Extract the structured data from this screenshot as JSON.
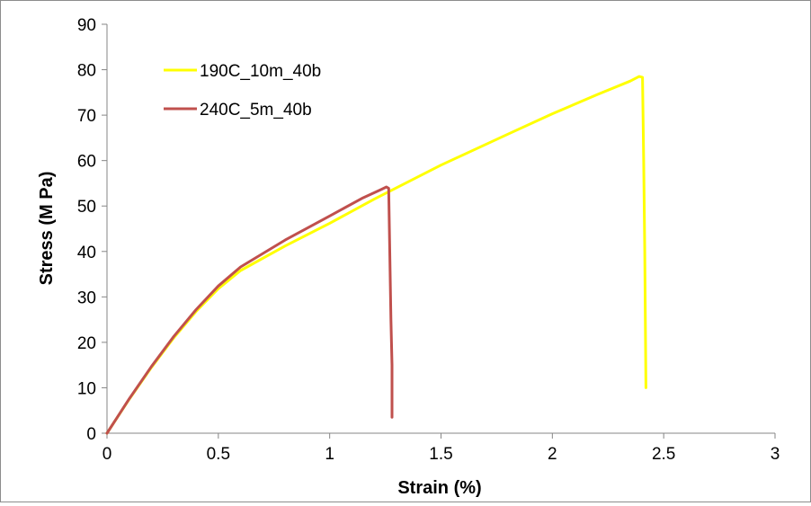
{
  "chart_data": {
    "type": "line",
    "title": "",
    "xlabel": "Strain (%)",
    "ylabel": "Stress (M Pa)",
    "xlim": [
      0,
      3
    ],
    "ylim": [
      0,
      90
    ],
    "x_ticks": [
      "0",
      "0.5",
      "1",
      "1.5",
      "2",
      "2.5",
      "3"
    ],
    "y_ticks": [
      "0",
      "10",
      "20",
      "30",
      "40",
      "50",
      "60",
      "70",
      "80",
      "90"
    ],
    "grid": false,
    "legend_position": "top-left",
    "series": [
      {
        "name": "190C_10m_40b",
        "color": "#ffff00",
        "points": [
          [
            0,
            0
          ],
          [
            0.1,
            7.5
          ],
          [
            0.2,
            14.5
          ],
          [
            0.3,
            21
          ],
          [
            0.4,
            26.8
          ],
          [
            0.5,
            31.8
          ],
          [
            0.6,
            35.8
          ],
          [
            0.8,
            41.2
          ],
          [
            1.0,
            46.2
          ],
          [
            1.2,
            51.5
          ],
          [
            1.5,
            59
          ],
          [
            1.8,
            65.8
          ],
          [
            2.0,
            70.3
          ],
          [
            2.2,
            74.5
          ],
          [
            2.35,
            77.5
          ],
          [
            2.39,
            78.5
          ],
          [
            2.405,
            78.3
          ],
          [
            2.41,
            60
          ],
          [
            2.415,
            40
          ],
          [
            2.42,
            10
          ]
        ]
      },
      {
        "name": "240C_5m_40b",
        "color": "#c0504d",
        "points": [
          [
            0,
            0
          ],
          [
            0.1,
            7.6
          ],
          [
            0.2,
            14.7
          ],
          [
            0.3,
            21.3
          ],
          [
            0.4,
            27.2
          ],
          [
            0.5,
            32.4
          ],
          [
            0.6,
            36.6
          ],
          [
            0.8,
            42.5
          ],
          [
            1.0,
            47.8
          ],
          [
            1.15,
            51.8
          ],
          [
            1.23,
            53.6
          ],
          [
            1.255,
            54.2
          ],
          [
            1.265,
            53.9
          ],
          [
            1.27,
            40
          ],
          [
            1.275,
            25
          ],
          [
            1.28,
            15
          ],
          [
            1.28,
            3.5
          ]
        ]
      }
    ]
  }
}
